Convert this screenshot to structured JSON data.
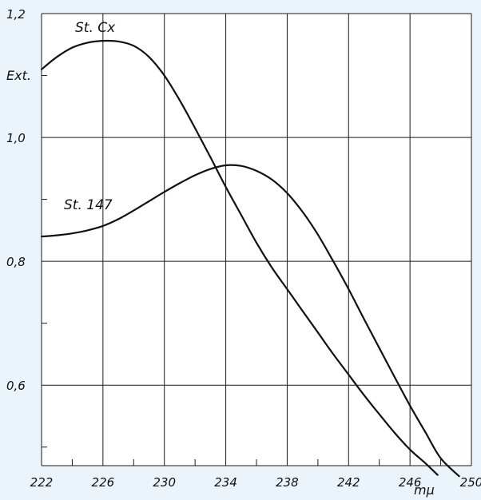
{
  "chart_data": {
    "type": "line",
    "title": "",
    "xlabel": "mµ",
    "ylabel": "Ext.",
    "xlim": [
      222,
      250
    ],
    "ylim": [
      0.47,
      1.2
    ],
    "x_ticks": [
      222,
      226,
      230,
      234,
      238,
      242,
      246,
      250
    ],
    "x_tick_labels": [
      "222",
      "226",
      "230",
      "234",
      "238",
      "242",
      "246",
      "250"
    ],
    "y_ticks": [
      0.6,
      0.8,
      1.0,
      1.2
    ],
    "y_tick_labels": [
      "0,6",
      "0,8",
      "1,0",
      "1,2"
    ],
    "grid": true,
    "series": [
      {
        "name": "St. Cx",
        "x": [
          222,
          223,
          224,
          225,
          226,
          227,
          228,
          229,
          230,
          231,
          232,
          233,
          234,
          235,
          236,
          237,
          238,
          239,
          240,
          241,
          242,
          243,
          244,
          245,
          246,
          247,
          247.8
        ],
        "y": [
          1.11,
          1.13,
          1.145,
          1.153,
          1.156,
          1.155,
          1.148,
          1.13,
          1.1,
          1.06,
          1.015,
          0.968,
          0.92,
          0.875,
          0.83,
          0.79,
          0.755,
          0.72,
          0.685,
          0.65,
          0.617,
          0.584,
          0.553,
          0.523,
          0.496,
          0.474,
          0.455
        ]
      },
      {
        "name": "St. 147",
        "x": [
          222,
          223,
          224,
          225,
          226,
          227,
          228,
          229,
          230,
          231,
          232,
          233,
          234,
          235,
          236,
          237,
          238,
          239,
          240,
          241,
          242,
          243,
          244,
          245,
          246,
          247,
          248,
          249.2
        ],
        "y": [
          0.84,
          0.842,
          0.845,
          0.85,
          0.857,
          0.868,
          0.882,
          0.897,
          0.912,
          0.926,
          0.939,
          0.949,
          0.955,
          0.954,
          0.946,
          0.932,
          0.91,
          0.88,
          0.843,
          0.8,
          0.755,
          0.707,
          0.66,
          0.613,
          0.567,
          0.524,
          0.482,
          0.453
        ]
      }
    ]
  }
}
